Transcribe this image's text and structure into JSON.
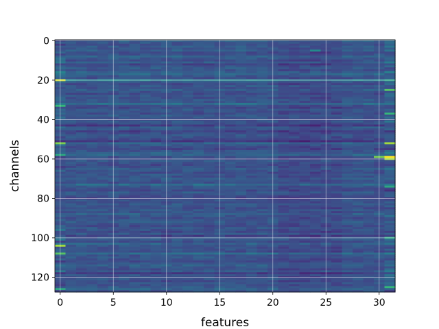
{
  "chart_data": {
    "type": "heatmap",
    "title": "",
    "xlabel": "features",
    "ylabel": "channels",
    "n_cols": 32,
    "n_rows": 128,
    "xlim": [
      -0.5,
      31.5
    ],
    "ylim": [
      127.5,
      -0.5
    ],
    "x_ticks": [
      0,
      5,
      10,
      15,
      20,
      25,
      30
    ],
    "y_ticks": [
      0,
      20,
      40,
      60,
      80,
      100,
      120
    ],
    "colormap": "viridis",
    "grid": true,
    "value_range": [
      0,
      1
    ],
    "row_profile": [
      0.38,
      0.34,
      0.31,
      0.36,
      0.33,
      0.38,
      0.28,
      0.32,
      0.4,
      0.35,
      0.3,
      0.37,
      0.26,
      0.33,
      0.36,
      0.31,
      0.39,
      0.42,
      0.34,
      0.3,
      0.55,
      0.33,
      0.29,
      0.35,
      0.31,
      0.37,
      0.32,
      0.28,
      0.34,
      0.3,
      0.36,
      0.33,
      0.45,
      0.31,
      0.27,
      0.35,
      0.32,
      0.29,
      0.36,
      0.33,
      0.3,
      0.34,
      0.31,
      0.22,
      0.36,
      0.33,
      0.24,
      0.3,
      0.35,
      0.32,
      0.28,
      0.2,
      0.4,
      0.34,
      0.3,
      0.27,
      0.33,
      0.38,
      0.42,
      0.31,
      0.29,
      0.35,
      0.32,
      0.28,
      0.3,
      0.36,
      0.33,
      0.29,
      0.34,
      0.31,
      0.37,
      0.33,
      0.3,
      0.45,
      0.34,
      0.31,
      0.28,
      0.36,
      0.33,
      0.3,
      0.25,
      0.34,
      0.31,
      0.36,
      0.33,
      0.29,
      0.35,
      0.32,
      0.38,
      0.34,
      0.3,
      0.33,
      0.36,
      0.31,
      0.29,
      0.34,
      0.32,
      0.28,
      0.35,
      0.24,
      0.33,
      0.36,
      0.31,
      0.4,
      0.34,
      0.3,
      0.33,
      0.29,
      0.45,
      0.32,
      0.35,
      0.31,
      0.28,
      0.34,
      0.38,
      0.33,
      0.3,
      0.36,
      0.22,
      0.33,
      0.3,
      0.35,
      0.28,
      0.34,
      0.31,
      0.36,
      0.4,
      0.33
    ],
    "hot_spots": [
      {
        "col": 0,
        "row": 20,
        "value": 0.95
      },
      {
        "col": 0,
        "row": 33,
        "value": 0.75
      },
      {
        "col": 0,
        "row": 52,
        "value": 0.85
      },
      {
        "col": 0,
        "row": 58,
        "value": 0.7
      },
      {
        "col": 0,
        "row": 104,
        "value": 0.9
      },
      {
        "col": 0,
        "row": 108,
        "value": 0.8
      },
      {
        "col": 0,
        "row": 126,
        "value": 0.7
      },
      {
        "col": 24,
        "row": 5,
        "value": 0.6
      },
      {
        "col": 31,
        "row": 25,
        "value": 0.8
      },
      {
        "col": 31,
        "row": 37,
        "value": 0.75
      },
      {
        "col": 31,
        "row": 52,
        "value": 0.9
      },
      {
        "col": 31,
        "row": 59,
        "value": 1.0
      },
      {
        "col": 30,
        "row": 59,
        "value": 0.85
      },
      {
        "col": 31,
        "row": 60,
        "value": 0.9
      },
      {
        "col": 31,
        "row": 74,
        "value": 0.7
      },
      {
        "col": 31,
        "row": 100,
        "value": 0.7
      },
      {
        "col": 31,
        "row": 125,
        "value": 0.75
      }
    ]
  }
}
